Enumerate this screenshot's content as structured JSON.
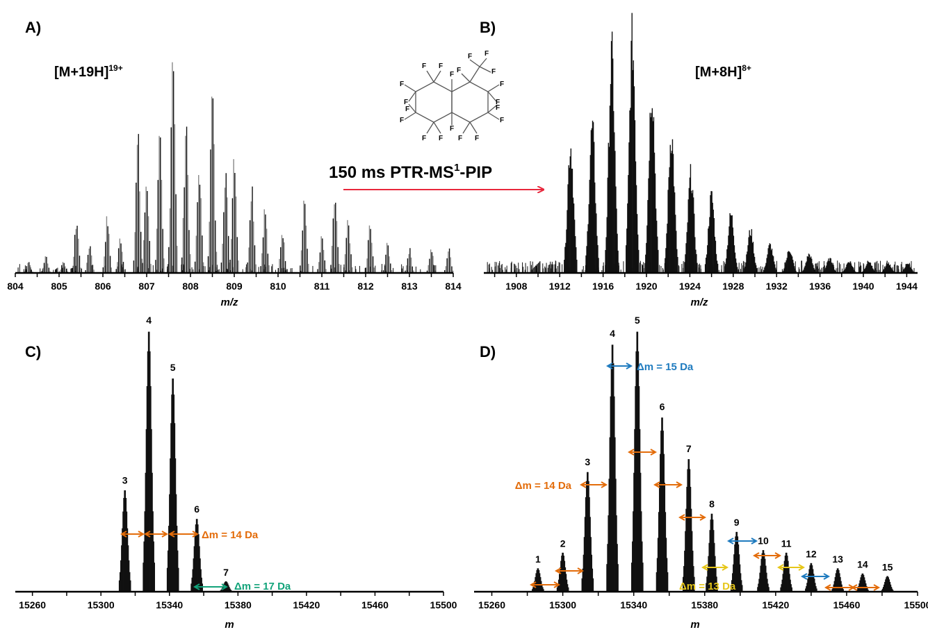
{
  "chart_data": [
    {
      "id": "A",
      "type": "bar",
      "panel_label": "A)",
      "ion_label": {
        "base": "[M+19H]",
        "sup": "19+"
      },
      "xlabel": "m/z",
      "xlim": [
        804,
        814
      ],
      "xticks": [
        "804",
        "805",
        "806",
        "807",
        "808",
        "809",
        "810",
        "811",
        "812",
        "813",
        "814"
      ],
      "grid": false,
      "peaks": [
        {
          "x": 804.3,
          "y": 0.05
        },
        {
          "x": 804.7,
          "y": 0.07
        },
        {
          "x": 805.1,
          "y": 0.05
        },
        {
          "x": 805.4,
          "y": 0.22
        },
        {
          "x": 805.7,
          "y": 0.12
        },
        {
          "x": 806.1,
          "y": 0.23
        },
        {
          "x": 806.4,
          "y": 0.15
        },
        {
          "x": 806.8,
          "y": 0.56
        },
        {
          "x": 807.0,
          "y": 0.4
        },
        {
          "x": 807.3,
          "y": 0.55
        },
        {
          "x": 807.6,
          "y": 1.0
        },
        {
          "x": 807.9,
          "y": 0.65
        },
        {
          "x": 808.2,
          "y": 0.45
        },
        {
          "x": 808.5,
          "y": 0.76
        },
        {
          "x": 808.8,
          "y": 0.45
        },
        {
          "x": 809.0,
          "y": 0.52
        },
        {
          "x": 809.4,
          "y": 0.38
        },
        {
          "x": 809.7,
          "y": 0.27
        },
        {
          "x": 810.1,
          "y": 0.18
        },
        {
          "x": 810.6,
          "y": 0.32
        },
        {
          "x": 811.0,
          "y": 0.15
        },
        {
          "x": 811.3,
          "y": 0.32
        },
        {
          "x": 811.6,
          "y": 0.22
        },
        {
          "x": 812.1,
          "y": 0.2
        },
        {
          "x": 812.5,
          "y": 0.12
        },
        {
          "x": 813.0,
          "y": 0.1
        },
        {
          "x": 813.5,
          "y": 0.1
        },
        {
          "x": 813.9,
          "y": 0.1
        }
      ]
    },
    {
      "id": "B",
      "type": "bar",
      "panel_label": "B)",
      "ion_label": {
        "base": "[M+8H]",
        "sup": "8+"
      },
      "xlabel": "m/z",
      "xlim": [
        1905,
        1945
      ],
      "xticks": [
        "1908",
        "1912",
        "1916",
        "1920",
        "1924",
        "1928",
        "1932",
        "1936",
        "1940",
        "1944"
      ],
      "grid": false,
      "peaks": [
        {
          "x": 1913.0,
          "y": 0.55
        },
        {
          "x": 1915.0,
          "y": 0.62
        },
        {
          "x": 1916.8,
          "y": 0.93
        },
        {
          "x": 1918.7,
          "y": 1.0
        },
        {
          "x": 1920.5,
          "y": 0.8
        },
        {
          "x": 1922.3,
          "y": 0.6
        },
        {
          "x": 1924.1,
          "y": 0.42
        },
        {
          "x": 1926.0,
          "y": 0.33
        },
        {
          "x": 1927.8,
          "y": 0.25
        },
        {
          "x": 1929.6,
          "y": 0.18
        },
        {
          "x": 1931.4,
          "y": 0.12
        },
        {
          "x": 1933.2,
          "y": 0.1
        },
        {
          "x": 1935.0,
          "y": 0.08
        },
        {
          "x": 1936.9,
          "y": 0.06
        },
        {
          "x": 1938.7,
          "y": 0.05
        },
        {
          "x": 1940.5,
          "y": 0.05
        },
        {
          "x": 1942.3,
          "y": 0.04
        },
        {
          "x": 1944.1,
          "y": 0.04
        }
      ]
    },
    {
      "id": "C",
      "type": "bar",
      "panel_label": "C)",
      "xlabel": "m",
      "xlim": [
        15250,
        15500
      ],
      "xticks": [
        "15260",
        "15300",
        "15340",
        "15380",
        "15420",
        "15460",
        "15500"
      ],
      "grid": false,
      "peaks": [
        {
          "x": 15314,
          "y": 0.39,
          "label": "3"
        },
        {
          "x": 15328,
          "y": 1.0,
          "label": "4"
        },
        {
          "x": 15342,
          "y": 0.82,
          "label": "5"
        },
        {
          "x": 15356,
          "y": 0.28,
          "label": "6"
        },
        {
          "x": 15373,
          "y": 0.04,
          "label": "7"
        }
      ],
      "annotations": [
        {
          "text": "Δm = 14 Da",
          "color": "#e36c0a"
        },
        {
          "text": "Δm = 17 Da",
          "color": "#12a37a"
        }
      ]
    },
    {
      "id": "D",
      "type": "bar",
      "panel_label": "D)",
      "xlabel": "m",
      "xlim": [
        15250,
        15500
      ],
      "xticks": [
        "15260",
        "15300",
        "15340",
        "15380",
        "15420",
        "15460",
        "15500"
      ],
      "grid": false,
      "peaks": [
        {
          "x": 15286,
          "y": 0.09,
          "label": "1"
        },
        {
          "x": 15300,
          "y": 0.15,
          "label": "2"
        },
        {
          "x": 15314,
          "y": 0.46,
          "label": "3"
        },
        {
          "x": 15328,
          "y": 0.95,
          "label": "4"
        },
        {
          "x": 15342,
          "y": 1.0,
          "label": "5"
        },
        {
          "x": 15356,
          "y": 0.67,
          "label": "6"
        },
        {
          "x": 15371,
          "y": 0.51,
          "label": "7"
        },
        {
          "x": 15384,
          "y": 0.3,
          "label": "8"
        },
        {
          "x": 15398,
          "y": 0.23,
          "label": "9"
        },
        {
          "x": 15413,
          "y": 0.16,
          "label": "10"
        },
        {
          "x": 15426,
          "y": 0.15,
          "label": "11"
        },
        {
          "x": 15440,
          "y": 0.11,
          "label": "12"
        },
        {
          "x": 15455,
          "y": 0.09,
          "label": "13"
        },
        {
          "x": 15469,
          "y": 0.07,
          "label": "14"
        },
        {
          "x": 15483,
          "y": 0.06,
          "label": "15"
        }
      ],
      "annotations": [
        {
          "text": "Δm = 15 Da",
          "color": "#1f7bbf"
        },
        {
          "text": "Δm = 14 Da",
          "color": "#e36c0a"
        },
        {
          "text": "Δm = 13 Da",
          "color": "#e6c619"
        }
      ]
    }
  ],
  "reaction_arrow": {
    "label": "150 ms PTR-MS",
    "sup": "1",
    "suffix": "-PIP",
    "color": "#e8273c"
  },
  "molecule": {
    "atom": "F",
    "name": "perfluorodecalin-structure"
  }
}
